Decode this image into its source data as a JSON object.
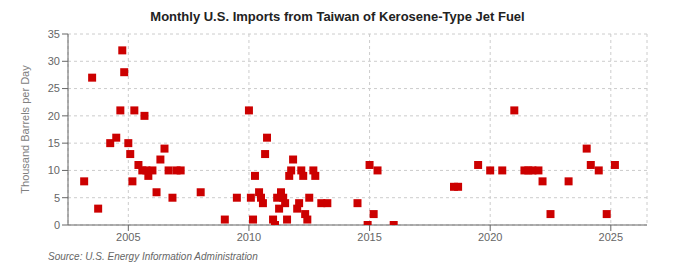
{
  "chart_data": {
    "type": "scatter",
    "title": "Monthly U.S. Imports from Taiwan of Kerosene-Type Jet Fuel",
    "ylabel": "Thousand Barrels per Day",
    "annotations": [
      "Source: U.S. Energy Information Administration"
    ],
    "color": "#cc0000",
    "marker": "square",
    "grid": true,
    "xlim": [
      2002.5,
      2026.5
    ],
    "xticks": [
      2005,
      2010,
      2015,
      2020,
      2025
    ],
    "ylim": [
      0,
      35
    ],
    "yticks": [
      0,
      5,
      10,
      15,
      20,
      25,
      30,
      35
    ],
    "x": [
      2003.17,
      2003.5,
      2003.75,
      2004.25,
      2004.5,
      2004.67,
      2004.75,
      2004.83,
      2005.0,
      2005.08,
      2005.17,
      2005.25,
      2005.42,
      2005.58,
      2005.67,
      2005.75,
      2005.83,
      2006.0,
      2006.17,
      2006.33,
      2006.5,
      2006.67,
      2006.83,
      2007.0,
      2007.17,
      2008.0,
      2009.0,
      2009.5,
      2010.0,
      2010.08,
      2010.17,
      2010.25,
      2010.42,
      2010.5,
      2010.58,
      2010.67,
      2010.75,
      2011.0,
      2011.08,
      2011.17,
      2011.25,
      2011.33,
      2011.42,
      2011.5,
      2011.58,
      2011.67,
      2011.75,
      2011.83,
      2012.0,
      2012.08,
      2012.17,
      2012.25,
      2012.33,
      2012.42,
      2012.5,
      2012.67,
      2012.75,
      2013.0,
      2013.25,
      2014.5,
      2014.92,
      2015.0,
      2015.17,
      2015.33,
      2016.0,
      2018.5,
      2018.67,
      2019.5,
      2020.0,
      2020.5,
      2021.0,
      2021.42,
      2021.58,
      2021.75,
      2022.0,
      2022.17,
      2022.5,
      2023.25,
      2024.0,
      2024.17,
      2024.5,
      2024.83,
      2025.17
    ],
    "values": [
      8,
      27,
      3,
      15,
      16,
      21,
      32,
      28,
      15,
      13,
      8,
      21,
      11,
      10,
      20,
      10,
      9,
      10,
      6,
      12,
      14,
      10,
      5,
      10,
      10,
      6,
      1,
      5,
      21,
      5,
      1,
      9,
      6,
      5,
      4,
      13,
      16,
      1,
      0,
      5,
      3,
      6,
      5,
      4,
      1,
      9,
      10,
      12,
      3,
      4,
      10,
      9,
      2,
      1,
      5,
      10,
      9,
      4,
      4,
      4,
      0,
      11,
      2,
      10,
      0,
      7,
      7,
      11,
      10,
      10,
      21,
      10,
      10,
      10,
      10,
      8,
      2,
      8,
      14,
      11,
      10,
      2,
      11
    ]
  }
}
